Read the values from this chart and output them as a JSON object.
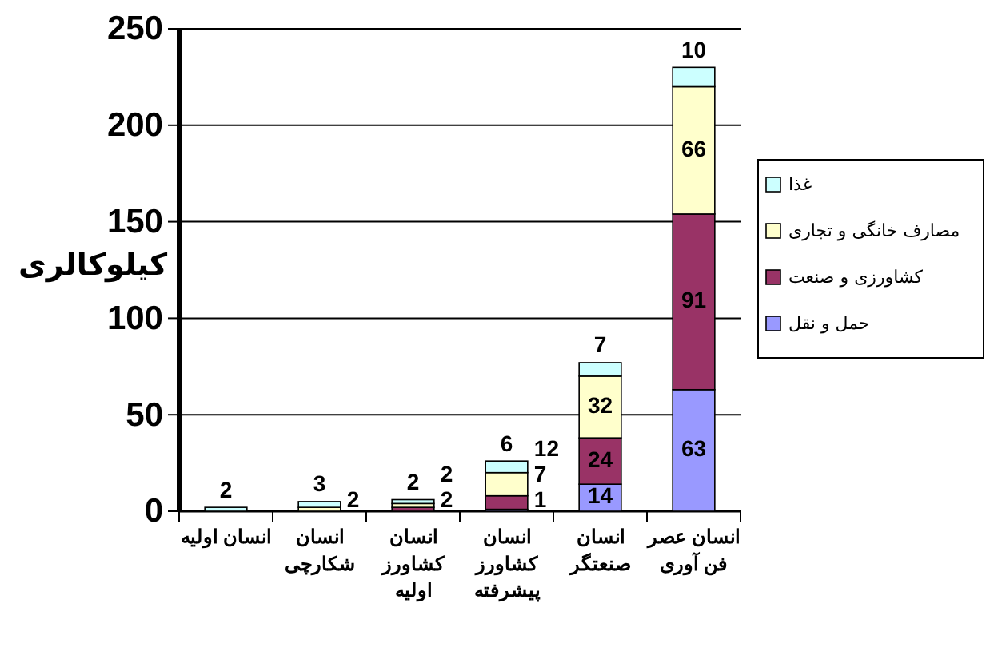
{
  "chart_data": {
    "type": "bar",
    "stacked": true,
    "categories": [
      "انسان اولیه",
      "انسان شکارچی",
      "انسان کشاورز اولیه",
      "انسان کشاورز پیشرفته",
      "انسان صنعتگر",
      "انسان عصر فن آوری"
    ],
    "ylabel": "کیلوکالری",
    "ylim": [
      0,
      250
    ],
    "yticks": [
      0,
      50,
      100,
      150,
      200,
      250
    ],
    "grid": "y",
    "legend": "right",
    "data_labels": true,
    "series": [
      {
        "name": "حمل و نقل",
        "color": "#9999ff",
        "values": [
          null,
          null,
          null,
          1,
          14,
          63
        ]
      },
      {
        "name": "کشاورزی و صنعت",
        "color": "#993366",
        "values": [
          null,
          null,
          2,
          7,
          24,
          91
        ]
      },
      {
        "name": "مصارف خانگی و تجاری",
        "color": "#ffffcc",
        "values": [
          null,
          2,
          2,
          12,
          32,
          66
        ]
      },
      {
        "name": "غذا",
        "color": "#ccffff",
        "values": [
          2,
          3,
          2,
          6,
          7,
          10
        ]
      }
    ]
  }
}
